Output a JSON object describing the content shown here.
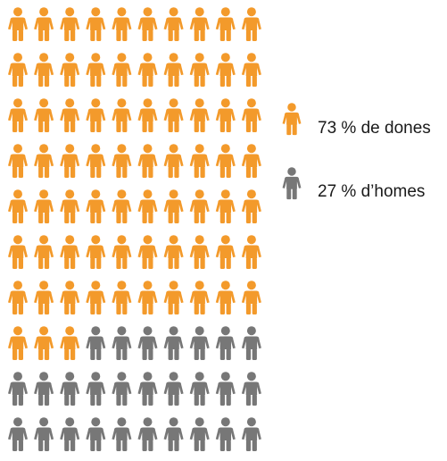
{
  "chart_data": {
    "type": "pictogram",
    "grid": {
      "columns": 10,
      "rows": 10,
      "fill_order": "row-major"
    },
    "series": [
      {
        "name": "73 % de dones",
        "value": 73,
        "unit": "%",
        "color": "#F39A2B",
        "icon": "person-icon"
      },
      {
        "name": "27 % d’homes",
        "value": 27,
        "unit": "%",
        "color": "#777777",
        "icon": "person-icon"
      }
    ],
    "legend": {
      "position": "right",
      "items": [
        {
          "label": "73 % de dones",
          "color": "#F39A2B",
          "icon": "person-icon"
        },
        {
          "label": "27 % d’homes",
          "color": "#777777",
          "icon": "person-icon"
        }
      ]
    }
  }
}
